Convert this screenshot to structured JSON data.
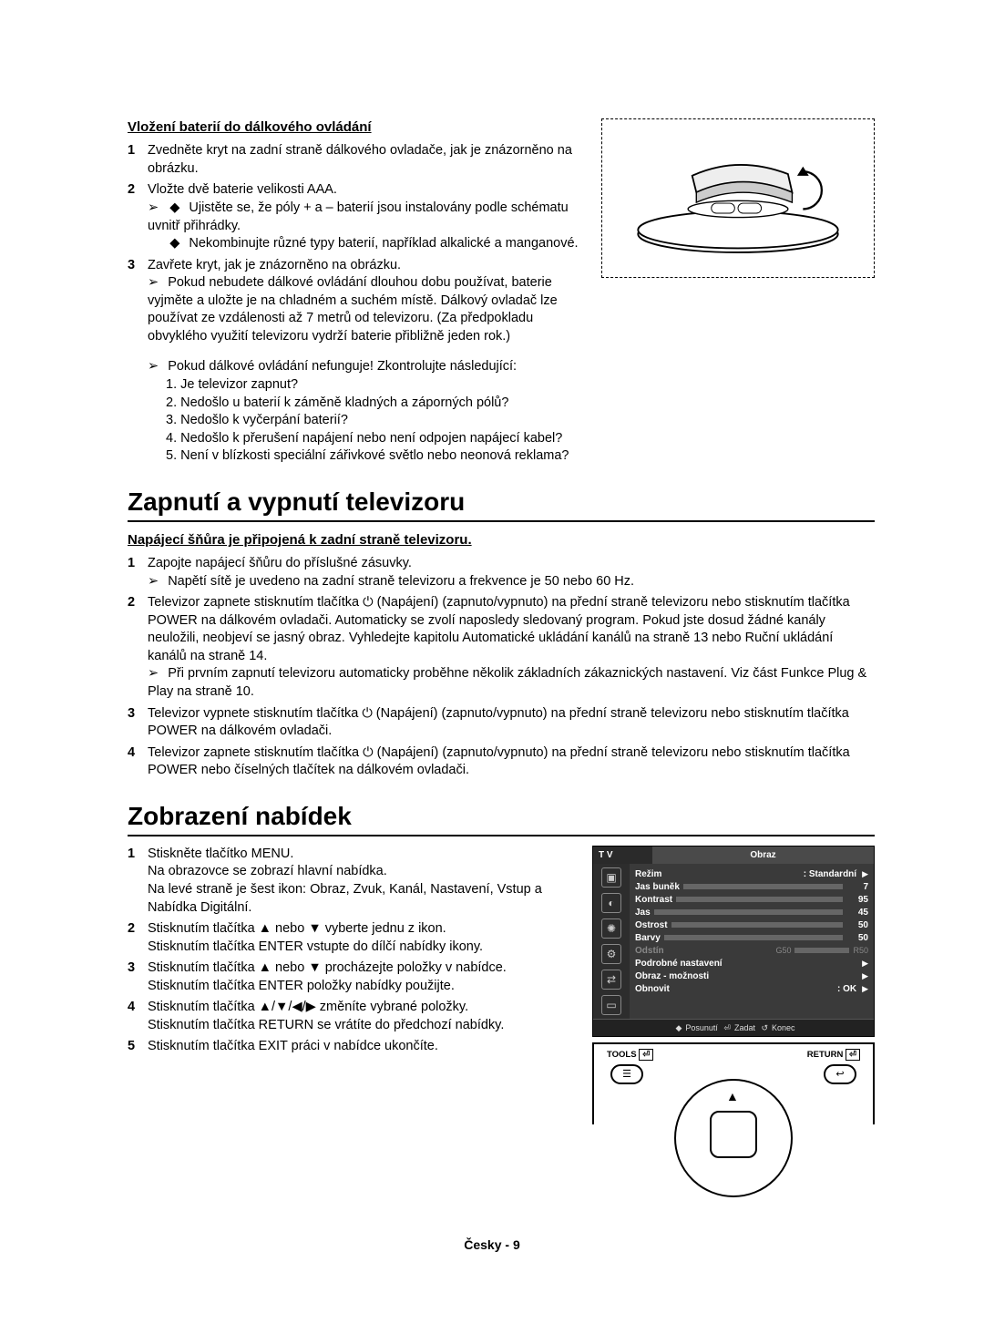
{
  "section1": {
    "heading": "Vložení baterií do dálkového ovládání",
    "items": [
      {
        "num": "1",
        "text": "Zvedněte kryt na zadní straně dálkového ovladače, jak je znázorněno na obrázku."
      },
      {
        "num": "2",
        "text": "Vložte dvě baterie velikosti AAA.",
        "subA": "Ujistěte se, že póly + a – baterií jsou instalovány podle schématu uvnitř přihrádky.",
        "subB": "Nekombinujte různé typy baterií, například alkalické a manganové."
      },
      {
        "num": "3",
        "text": "Zavřete kryt, jak je znázorněno na obrázku.",
        "note1": "Pokud nebudete dálkové ovládání dlouhou dobu používat, baterie vyjměte a uložte je na chladném a suchém místě. Dálkový ovladač lze používat ze vzdálenosti až 7 metrů od televizoru. (Za předpokladu obvyklého využití televizoru vydrží baterie přibližně jeden rok.)"
      }
    ],
    "warn_lead": "Pokud dálkové ovládání nefunguje! Zkontrolujte následující:",
    "warn": [
      "1. Je televizor zapnut?",
      "2. Nedošlo u baterií k záměně kladných a záporných pólů?",
      "3. Nedošlo k vyčerpání baterií?",
      "4. Nedošlo k přerušení napájení nebo není odpojen napájecí kabel?",
      "5. Není v blízkosti speciální zářivkové světlo nebo neonová reklama?"
    ]
  },
  "section2": {
    "title": "Zapnutí a vypnutí televizoru",
    "heading": "Napájecí šňůra je připojená k zadní straně televizoru.",
    "items": [
      {
        "num": "1",
        "line1": "Zapojte napájecí šňůru do příslušné zásuvky.",
        "note": "Napětí sítě je uvedeno na zadní straně televizoru a frekvence je 50 nebo 60 Hz."
      },
      {
        "num": "2",
        "para": "Televizor zapnete stisknutím tlačítka ⏻ (Napájení) (zapnuto/vypnuto) na přední straně televizoru nebo stisknutím tlačítka POWER na dálkovém ovladači. Automaticky se zvolí naposledy sledovaný program. Pokud jste dosud žádné kanály neuložili, neobjeví se jasný obraz. Vyhledejte kapitolu Automatické ukládání kanálů na straně 13 nebo Ruční ukládání kanálů na straně 14.",
        "note": "Při prvním zapnutí televizoru automaticky proběhne několik základních zákaznických nastavení. Viz část Funkce Plug & Play na straně 10."
      },
      {
        "num": "3",
        "para": "Televizor vypnete stisknutím tlačítka ⏻ (Napájení) (zapnuto/vypnuto) na přední straně televizoru nebo stisknutím tlačítka POWER na dálkovém ovladači."
      },
      {
        "num": "4",
        "para": "Televizor zapnete stisknutím tlačítka ⏻ (Napájení) (zapnuto/vypnuto) na přední straně televizoru nebo stisknutím tlačítka POWER nebo číselných tlačítek na dálkovém ovladači."
      }
    ]
  },
  "section3": {
    "title": "Zobrazení nabídek",
    "items": [
      {
        "num": "1",
        "l1": "Stiskněte tlačítko MENU.",
        "l2": "Na obrazovce se zobrazí hlavní nabídka.",
        "l3": "Na levé straně je šest ikon: Obraz, Zvuk, Kanál, Nastavení, Vstup a Nabídka Digitální."
      },
      {
        "num": "2",
        "l1": "Stisknutím tlačítka ▲ nebo ▼ vyberte jednu z ikon.",
        "l2": "Stisknutím tlačítka ENTER vstupte do dílčí nabídky ikony."
      },
      {
        "num": "3",
        "l1": "Stisknutím tlačítka ▲ nebo ▼ procházejte položky v nabídce.",
        "l2": "Stisknutím tlačítka ENTER položky nabídky použijte."
      },
      {
        "num": "4",
        "l1": "Stisknutím tlačítka ▲/▼/◀/▶ změníte vybrané položky.",
        "l2": "Stisknutím tlačítka RETURN se vrátíte do předchozí nabídky."
      },
      {
        "num": "5",
        "l1": "Stisknutím tlačítka EXIT práci v nabídce ukončíte."
      }
    ]
  },
  "osd": {
    "tv": "T V",
    "tab": "Obraz",
    "rows": [
      {
        "label": "Režim",
        "value": ": Standardní",
        "arrow": "▶",
        "bar": null
      },
      {
        "label": "Jas buněk",
        "value": "7",
        "bar": 7
      },
      {
        "label": "Kontrast",
        "value": "95",
        "bar": 95
      },
      {
        "label": "Jas",
        "value": "45",
        "bar": 45
      },
      {
        "label": "Ostrost",
        "value": "50",
        "bar": 50
      },
      {
        "label": "Barvy",
        "value": "50",
        "bar": 50
      },
      {
        "label": "Odstín",
        "left": "G50",
        "right": "R50",
        "dim": true
      },
      {
        "label": "Podrobné nastavení",
        "arrow": "▶"
      },
      {
        "label": "Obraz - možnosti",
        "arrow": "▶"
      },
      {
        "label": "Obnovit",
        "value": ": OK",
        "arrow": "▶"
      }
    ],
    "footer": {
      "move": "Posunutí",
      "enter": "Zadat",
      "exit": "Konec"
    },
    "remote": {
      "tools": "TOOLS",
      "return": "RETURN"
    }
  },
  "footer": "Česky - 9"
}
